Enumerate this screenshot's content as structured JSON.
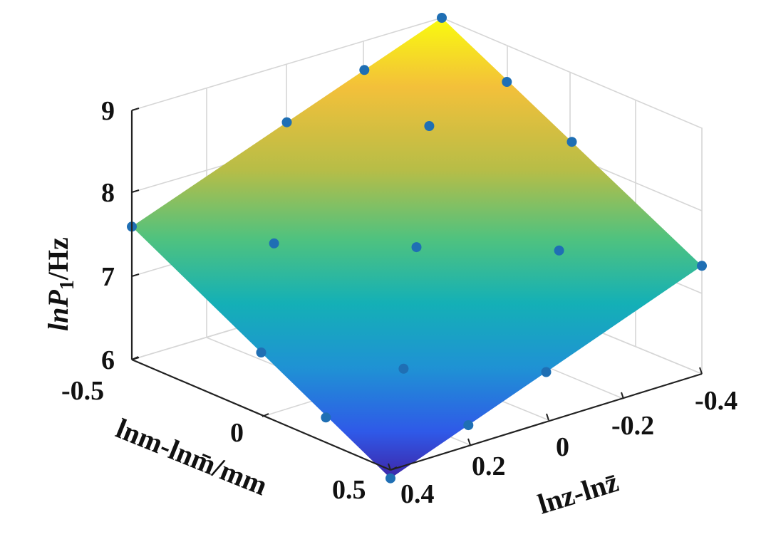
{
  "chart_data": {
    "type": "surface3d",
    "zlabel": "lnP₁/Hz",
    "zlabel_main": "lnP",
    "zlabel_sub": "1",
    "zlabel_unit": "/Hz",
    "xlabel": "lnm-lnm̄/mm",
    "ylabel": "lnz-lnz̄",
    "zlim": [
      6,
      9
    ],
    "xlim": [
      -0.5,
      0.5
    ],
    "ylim": [
      -0.4,
      0.4
    ],
    "z_ticks": [
      "6",
      "7",
      "8",
      "9"
    ],
    "x_ticks": [
      "-0.5",
      "0",
      "0.5"
    ],
    "y_ticks": [
      "0.4",
      "0.2",
      "0",
      "-0.2",
      "-0.4"
    ],
    "colormap": "parula",
    "grid": true,
    "surface_corners": [
      {
        "x": -0.5,
        "y": -0.4,
        "z": 9.0
      },
      {
        "x": 0.5,
        "y": -0.4,
        "z": 7.3
      },
      {
        "x": 0.5,
        "y": 0.4,
        "z": 5.9
      },
      {
        "x": -0.5,
        "y": 0.4,
        "z": 7.6
      }
    ],
    "points": [
      {
        "x": -0.5,
        "y": -0.4,
        "z": 9.0
      },
      {
        "x": -0.5,
        "y": 0.0,
        "z": 8.3
      },
      {
        "x": -0.5,
        "y": 0.4,
        "z": 7.6
      },
      {
        "x": 0.0,
        "y": -0.4,
        "z": 8.15
      },
      {
        "x": 0.0,
        "y": 0.0,
        "z": 7.45
      },
      {
        "x": 0.0,
        "y": 0.4,
        "z": 6.75
      },
      {
        "x": 0.5,
        "y": -0.4,
        "z": 7.3
      },
      {
        "x": 0.5,
        "y": 0.0,
        "z": 6.6
      },
      {
        "x": 0.5,
        "y": 0.4,
        "z": 5.9
      },
      {
        "x": -0.25,
        "y": -0.2,
        "z": 8.3
      },
      {
        "x": 0.25,
        "y": -0.2,
        "z": 7.45
      },
      {
        "x": -0.25,
        "y": 0.2,
        "z": 7.45
      },
      {
        "x": 0.25,
        "y": 0.2,
        "z": 6.6
      },
      {
        "x": -0.5,
        "y": -0.2,
        "z": 8.65
      },
      {
        "x": 0.5,
        "y": 0.2,
        "z": 6.25
      },
      {
        "x": 0.25,
        "y": 0.4,
        "z": 6.3
      },
      {
        "x": -0.25,
        "y": -0.4,
        "z": 8.55
      }
    ]
  },
  "colors": {
    "marker": "#1f6fb4",
    "colormap_stops": [
      "#3e26a8",
      "#2f59e8",
      "#1f92d4",
      "#14b0b6",
      "#4fc27f",
      "#b7bd47",
      "#f3c03a",
      "#f9fb0e"
    ]
  }
}
